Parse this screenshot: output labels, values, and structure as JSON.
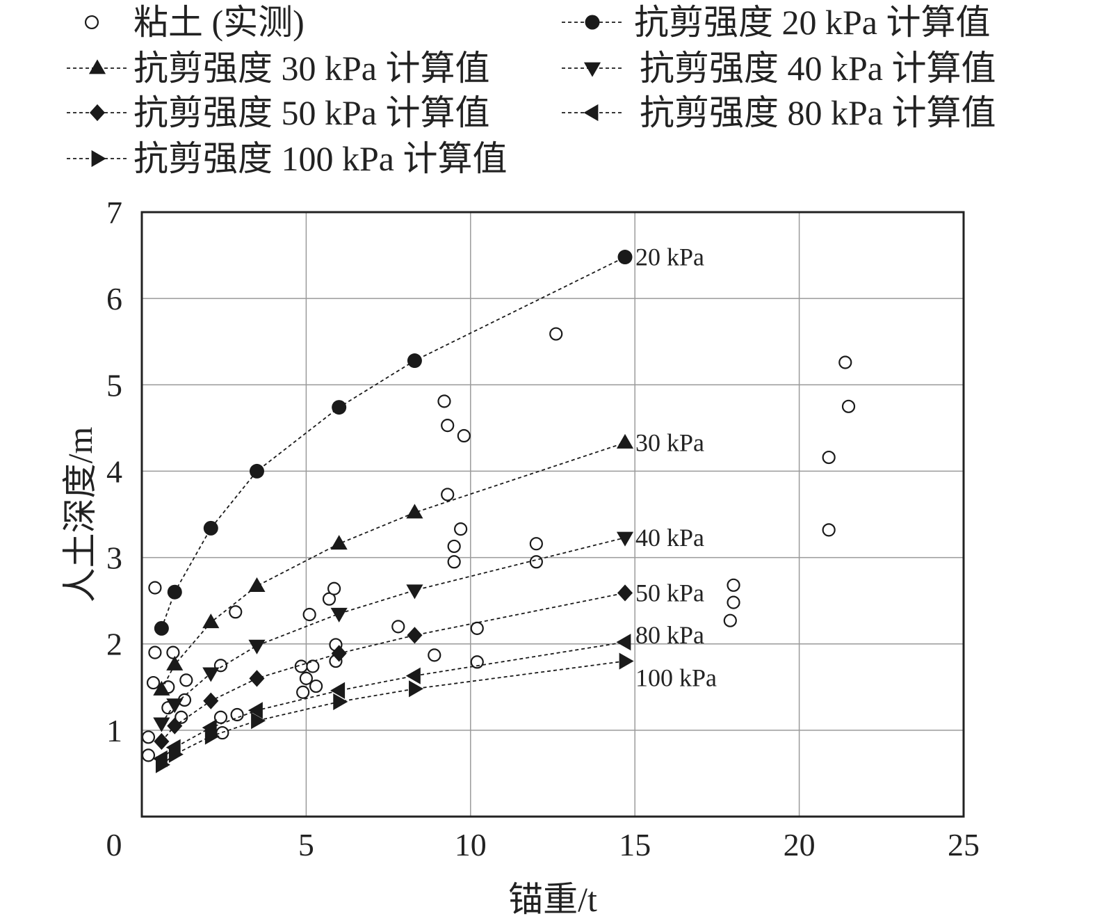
{
  "chart_data": {
    "type": "scatter",
    "title": "",
    "xlabel": "锚重/t",
    "ylabel": "人土深度/m",
    "xlim": [
      0,
      25
    ],
    "ylim": [
      0,
      7
    ],
    "xticks": [
      0,
      5,
      10,
      15,
      20,
      25
    ],
    "yticks": [
      1,
      2,
      3,
      4,
      5,
      6,
      7
    ],
    "grid": true,
    "legend_position": "top",
    "series": [
      {
        "name": "粘土 (实测)",
        "marker": "open-circle",
        "line": false,
        "points": [
          [
            0.2,
            0.92
          ],
          [
            0.2,
            0.71
          ],
          [
            0.4,
            2.65
          ],
          [
            0.4,
            1.9
          ],
          [
            0.35,
            1.55
          ],
          [
            0.8,
            1.5
          ],
          [
            0.8,
            1.26
          ],
          [
            0.95,
            1.9
          ],
          [
            1.2,
            1.15
          ],
          [
            1.3,
            1.35
          ],
          [
            1.35,
            1.58
          ],
          [
            2.4,
            1.75
          ],
          [
            2.4,
            1.15
          ],
          [
            2.45,
            0.97
          ],
          [
            2.9,
            1.18
          ],
          [
            2.85,
            2.37
          ],
          [
            4.85,
            1.74
          ],
          [
            4.9,
            1.44
          ],
          [
            5.0,
            1.6
          ],
          [
            5.1,
            2.34
          ],
          [
            5.2,
            1.74
          ],
          [
            5.3,
            1.51
          ],
          [
            5.7,
            2.52
          ],
          [
            5.85,
            2.64
          ],
          [
            5.9,
            1.8
          ],
          [
            5.9,
            1.99
          ],
          [
            7.8,
            2.2
          ],
          [
            8.9,
            1.87
          ],
          [
            9.2,
            4.81
          ],
          [
            9.3,
            4.53
          ],
          [
            9.3,
            3.73
          ],
          [
            9.5,
            3.13
          ],
          [
            9.5,
            2.95
          ],
          [
            9.7,
            3.33
          ],
          [
            9.8,
            4.41
          ],
          [
            10.2,
            2.18
          ],
          [
            10.2,
            1.79
          ],
          [
            12.0,
            3.16
          ],
          [
            12.0,
            2.95
          ],
          [
            12.6,
            5.59
          ],
          [
            18.0,
            2.68
          ],
          [
            18.0,
            2.48
          ],
          [
            17.9,
            2.27
          ],
          [
            20.9,
            4.16
          ],
          [
            20.9,
            3.32
          ],
          [
            21.4,
            5.26
          ],
          [
            21.5,
            4.75
          ]
        ]
      },
      {
        "name": "抗剪强度 20 kPa 计算值",
        "marker": "filled-circle",
        "line": true,
        "label": "20 kPa",
        "points": [
          [
            0.6,
            2.18
          ],
          [
            1.0,
            2.6
          ],
          [
            2.1,
            3.34
          ],
          [
            3.5,
            4.0
          ],
          [
            6.0,
            4.74
          ],
          [
            8.3,
            5.28
          ],
          [
            14.7,
            6.48
          ]
        ]
      },
      {
        "name": "抗剪强度 30 kPa 计算值",
        "marker": "triangle-up",
        "line": true,
        "label": "30 kPa",
        "points": [
          [
            0.6,
            1.47
          ],
          [
            1.0,
            1.76
          ],
          [
            2.1,
            2.25
          ],
          [
            3.5,
            2.67
          ],
          [
            6.0,
            3.16
          ],
          [
            8.3,
            3.52
          ],
          [
            14.7,
            4.33
          ]
        ]
      },
      {
        "name": "抗剪强度 40 kPa 计算值",
        "marker": "triangle-down",
        "line": true,
        "label": "40 kPa",
        "points": [
          [
            0.6,
            1.08
          ],
          [
            1.0,
            1.3
          ],
          [
            2.1,
            1.66
          ],
          [
            3.5,
            1.98
          ],
          [
            6.0,
            2.35
          ],
          [
            8.3,
            2.62
          ],
          [
            14.7,
            3.23
          ]
        ]
      },
      {
        "name": "抗剪强度 50 kPa 计算值",
        "marker": "diamond",
        "line": true,
        "label": "50 kPa",
        "points": [
          [
            0.6,
            0.87
          ],
          [
            1.0,
            1.05
          ],
          [
            2.1,
            1.34
          ],
          [
            3.5,
            1.6
          ],
          [
            6.0,
            1.89
          ],
          [
            8.3,
            2.1
          ],
          [
            14.7,
            2.59
          ]
        ]
      },
      {
        "name": "抗剪强度 80 kPa 计算值",
        "marker": "triangle-left",
        "line": true,
        "label": "80 kPa",
        "points": [
          [
            0.6,
            0.67
          ],
          [
            1.0,
            0.8
          ],
          [
            2.1,
            1.03
          ],
          [
            3.5,
            1.23
          ],
          [
            6.0,
            1.46
          ],
          [
            8.3,
            1.63
          ],
          [
            14.7,
            2.02
          ]
        ]
      },
      {
        "name": "抗剪强度 100 kPa 计算值",
        "marker": "triangle-right",
        "line": true,
        "label": "100 kPa",
        "points": [
          [
            0.6,
            0.6
          ],
          [
            1.0,
            0.72
          ],
          [
            2.1,
            0.93
          ],
          [
            3.5,
            1.11
          ],
          [
            6.0,
            1.33
          ],
          [
            8.3,
            1.48
          ],
          [
            14.7,
            1.8
          ]
        ]
      }
    ]
  }
}
